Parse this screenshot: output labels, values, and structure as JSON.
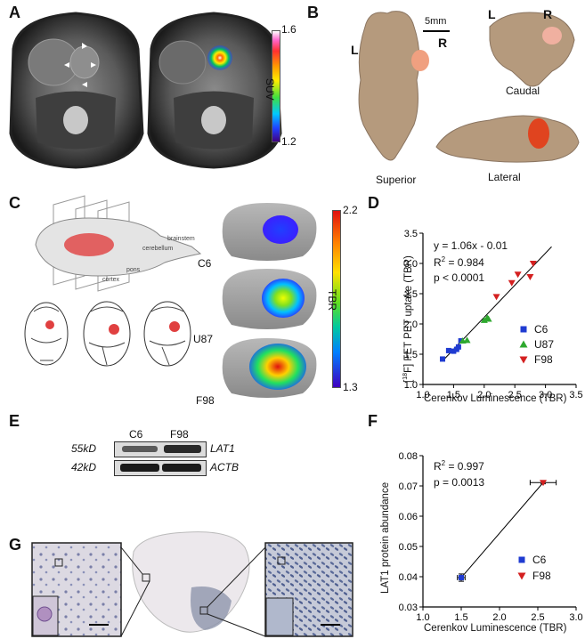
{
  "panels": {
    "A": {
      "letter": "A",
      "colorbar": {
        "top": "1.6",
        "bottom": "1.2",
        "label": "SUV"
      }
    },
    "B": {
      "letter": "B",
      "scale": "5mm",
      "L": "L",
      "R": "R",
      "L2": "L",
      "R2": "R",
      "superior": "Superior",
      "caudal": "Caudal",
      "lateral": "Lateral"
    },
    "C": {
      "letter": "C",
      "anatomy": {
        "brainstem": "brainstem",
        "cerebellum": "cerebellum",
        "pons": "pons",
        "cortex": "cortex"
      },
      "rows": [
        "C6",
        "U87",
        "F98"
      ],
      "colorbar": {
        "top": "2.2",
        "bottom": "1.3",
        "label": "TBR"
      }
    },
    "D": {
      "letter": "D",
      "equation": "y = 1.06x - 0.01",
      "r2_prefix": "R",
      "r2_sup": "2",
      "r2_value": " = 0.984",
      "pvalue": "p < 0.0001",
      "ylabel_pre": "[",
      "ylabel_sup": "18",
      "ylabel_post": "F] FET PET uptake (TBR)",
      "xlabel": "Cerenkov Luminescence (TBR)",
      "legend": [
        "C6",
        "U87",
        "F98"
      ]
    },
    "E": {
      "letter": "E",
      "lanes": [
        "C6",
        "F98"
      ],
      "bands": [
        {
          "size": "55kD",
          "gene": "LAT1"
        },
        {
          "size": "42kD",
          "gene": "ACTB"
        }
      ]
    },
    "F": {
      "letter": "F",
      "r2_prefix": "R",
      "r2_sup": "2",
      "r2_value": " = 0.997",
      "pvalue": "p = 0.0013",
      "ylabel": "LAT1 protein abundance",
      "xlabel": "Cerenkov Luminescence (TBR)",
      "legend": [
        "C6",
        "F98"
      ]
    },
    "G": {
      "letter": "G"
    }
  },
  "chart_data": [
    {
      "type": "scatter",
      "title": "",
      "xlabel": "Cerenkov Luminescence (TBR)",
      "ylabel": "[18F] FET PET uptake (TBR)",
      "xlim": [
        1.0,
        3.5
      ],
      "ylim": [
        1.0,
        3.5
      ],
      "xticks": [
        "1.0",
        "1.5",
        "2.0",
        "2.5",
        "3.0",
        "3.5"
      ],
      "yticks": [
        "1.0",
        "1.5",
        "2.0",
        "2.5",
        "3.0",
        "3.5"
      ],
      "fit": {
        "slope": 1.06,
        "intercept": -0.01
      },
      "series": [
        {
          "name": "C6",
          "color": "#1f3bd1",
          "marker": "square",
          "x": [
            1.32,
            1.42,
            1.5,
            1.55,
            1.58,
            1.62
          ],
          "y": [
            1.42,
            1.56,
            1.55,
            1.58,
            1.62,
            1.72
          ]
        },
        {
          "name": "U87",
          "color": "#2ea82e",
          "marker": "triangle-up",
          "x": [
            1.65,
            1.72,
            2.0,
            2.05,
            2.07
          ],
          "y": [
            1.72,
            1.73,
            2.06,
            2.1,
            2.08
          ]
        },
        {
          "name": "F98",
          "color": "#d42020",
          "marker": "triangle-down",
          "x": [
            2.2,
            2.45,
            2.55,
            2.75,
            2.8
          ],
          "y": [
            2.45,
            2.68,
            2.82,
            2.78,
            3.0
          ]
        }
      ]
    },
    {
      "type": "scatter",
      "title": "",
      "xlabel": "Cerenkov Luminescence (TBR)",
      "ylabel": "LAT1 protein abundance",
      "xlim": [
        1.0,
        3.0
      ],
      "ylim": [
        0.03,
        0.08
      ],
      "xticks": [
        "1.0",
        "1.5",
        "2.0",
        "2.5",
        "3.0"
      ],
      "yticks": [
        "0.03",
        "0.04",
        "0.05",
        "0.06",
        "0.07",
        "0.08"
      ],
      "series": [
        {
          "name": "C6",
          "color": "#1f3bd1",
          "marker": "square",
          "x": [
            1.5
          ],
          "y": [
            0.0397
          ],
          "xerr": [
            0.05
          ],
          "yerr": [
            0.0012
          ]
        },
        {
          "name": "F98",
          "color": "#d42020",
          "marker": "triangle-down",
          "x": [
            2.57
          ],
          "y": [
            0.0711
          ],
          "xerr": [
            0.17
          ],
          "yerr": [
            0.0004
          ]
        }
      ]
    }
  ]
}
